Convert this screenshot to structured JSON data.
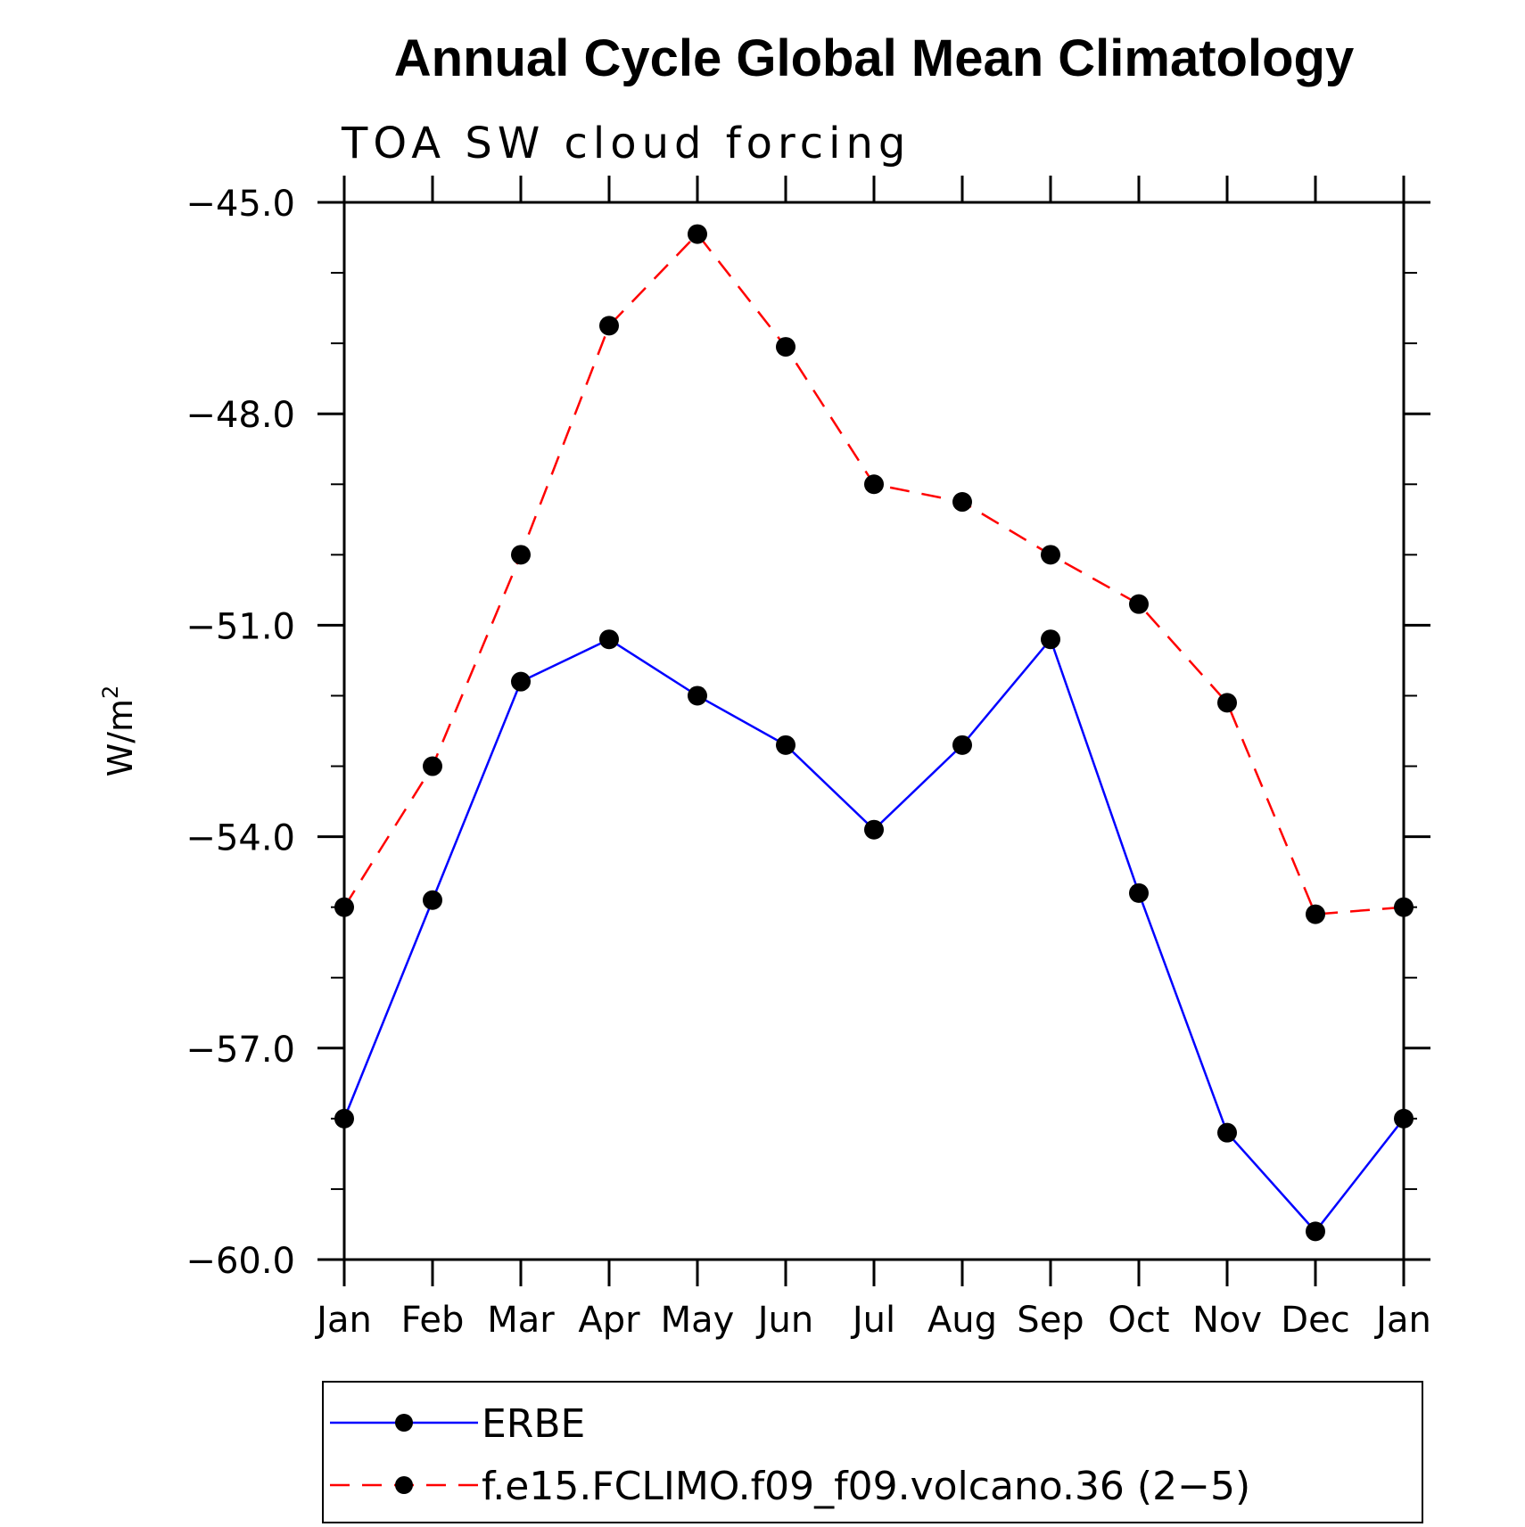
{
  "chart_data": {
    "type": "line",
    "title": "Annual Cycle Global Mean Climatology",
    "subtitle": "TOA SW cloud forcing",
    "ylabel_base": "W/m",
    "ylabel_sup": "2",
    "categories": [
      "Jan",
      "Feb",
      "Mar",
      "Apr",
      "May",
      "Jun",
      "Jul",
      "Aug",
      "Sep",
      "Oct",
      "Nov",
      "Dec",
      "Jan"
    ],
    "ylim": [
      -60.0,
      -45.0
    ],
    "yticks": [
      -45.0,
      -48.0,
      -51.0,
      -54.0,
      -57.0,
      -60.0
    ],
    "ytick_labels": [
      "−45.0",
      "−48.0",
      "−51.0",
      "−54.0",
      "−57.0",
      "−60.0"
    ],
    "series": [
      {
        "name": "ERBE",
        "color": "#0000ff",
        "style": "solid",
        "values": [
          -58.0,
          -54.9,
          -51.8,
          -51.2,
          -52.0,
          -52.7,
          -53.9,
          -52.7,
          -51.2,
          -54.8,
          -58.2,
          -59.6,
          -58.0
        ]
      },
      {
        "name": "f.e15.FCLIMO.f09_f09.volcano.36 (2−5)",
        "color": "#ff0000",
        "style": "dashed",
        "values": [
          -55.0,
          -53.0,
          -50.0,
          -46.75,
          -45.45,
          -47.05,
          -49.0,
          -49.25,
          -50.0,
          -50.7,
          -52.1,
          -55.1,
          -55.0
        ]
      }
    ],
    "grid": false,
    "legend_position": "bottom"
  }
}
